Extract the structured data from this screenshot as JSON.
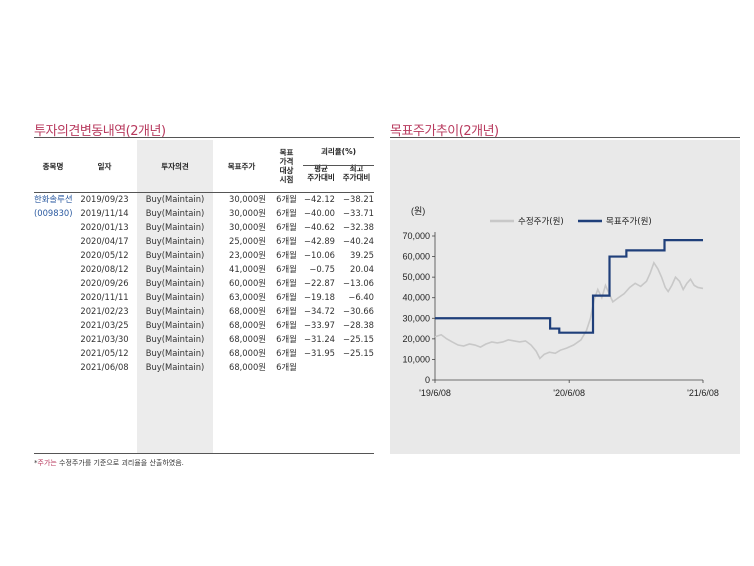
{
  "left_title": "투자의견변동내역(2개년)",
  "right_title": "목표주가추이(2개년)",
  "table": {
    "headers": {
      "name": "종목명",
      "date": "일자",
      "opinion": "투자의견",
      "target": "목표주가",
      "period_lines": [
        "목표",
        "가격",
        "대상",
        "시점"
      ],
      "gap": "괴리율(%)",
      "avg_lines": [
        "평균",
        "주가대비"
      ],
      "max_lines": [
        "최고",
        "주가대비"
      ]
    },
    "company": {
      "name": "한화솔루션",
      "code": "(009830)"
    },
    "rows": [
      {
        "date": "2019/09/23",
        "opinion": "Buy(Maintain)",
        "target": "30,000원",
        "period": "6개월",
        "avg": "-42.12",
        "max": "-38.21"
      },
      {
        "date": "2019/11/14",
        "opinion": "Buy(Maintain)",
        "target": "30,000원",
        "period": "6개월",
        "avg": "-40.00",
        "max": "-33.71"
      },
      {
        "date": "2020/01/13",
        "opinion": "Buy(Maintain)",
        "target": "30,000원",
        "period": "6개월",
        "avg": "-40.62",
        "max": "-32.38"
      },
      {
        "date": "2020/04/17",
        "opinion": "Buy(Maintain)",
        "target": "25,000원",
        "period": "6개월",
        "avg": "-42.89",
        "max": "-40.24"
      },
      {
        "date": "2020/05/12",
        "opinion": "Buy(Maintain)",
        "target": "23,000원",
        "period": "6개월",
        "avg": "-10.06",
        "max": "39.25"
      },
      {
        "date": "2020/08/12",
        "opinion": "Buy(Maintain)",
        "target": "41,000원",
        "period": "6개월",
        "avg": "-0.75",
        "max": "20.04"
      },
      {
        "date": "2020/09/26",
        "opinion": "Buy(Maintain)",
        "target": "60,000원",
        "period": "6개월",
        "avg": "-22.87",
        "max": "-13.06"
      },
      {
        "date": "2020/11/11",
        "opinion": "Buy(Maintain)",
        "target": "63,000원",
        "period": "6개월",
        "avg": "-19.18",
        "max": "-6.40"
      },
      {
        "date": "2021/02/23",
        "opinion": "Buy(Maintain)",
        "target": "68,000원",
        "period": "6개월",
        "avg": "-34.72",
        "max": "-30.66"
      },
      {
        "date": "2021/03/25",
        "opinion": "Buy(Maintain)",
        "target": "68,000원",
        "period": "6개월",
        "avg": "-33.97",
        "max": "-28.38"
      },
      {
        "date": "2021/03/30",
        "opinion": "Buy(Maintain)",
        "target": "68,000원",
        "period": "6개월",
        "avg": "-31.24",
        "max": "-25.15"
      },
      {
        "date": "2021/05/12",
        "opinion": "Buy(Maintain)",
        "target": "68,000원",
        "period": "6개월",
        "avg": "-31.95",
        "max": "-25.15"
      },
      {
        "date": "2021/06/08",
        "opinion": "Buy(Maintain)",
        "target": "68,000원",
        "period": "6개월",
        "avg": "",
        "max": ""
      }
    ]
  },
  "footnote": {
    "highlight": "주가는",
    "rest": " 수정주가를 기준으로 괴리율을 산출하였음.",
    "marker": "*"
  },
  "chart_data": {
    "type": "line",
    "ylabel": "(원)",
    "ylim": [
      0,
      70000
    ],
    "yticks": [
      "0",
      "10,000",
      "20,000",
      "30,000",
      "40,000",
      "50,000",
      "60,000",
      "70,000"
    ],
    "xlim": [
      "2019-06-08",
      "2021-06-08"
    ],
    "xticks": [
      {
        "label": "'19/6/08",
        "x": "2019-06-08"
      },
      {
        "label": "'20/6/08",
        "x": "2020-06-08"
      },
      {
        "label": "'21/6/08",
        "x": "2021-06-08"
      }
    ],
    "legend": "top",
    "colors": {
      "price": "#c8c8c8",
      "target": "#1f3f7a"
    },
    "series": [
      {
        "name": "수정주가(원)",
        "style": "line",
        "points": [
          [
            "2019-06-08",
            21000
          ],
          [
            "2019-06-25",
            22000
          ],
          [
            "2019-07-10",
            20000
          ],
          [
            "2019-07-25",
            18500
          ],
          [
            "2019-08-10",
            17000
          ],
          [
            "2019-08-25",
            16500
          ],
          [
            "2019-09-10",
            17500
          ],
          [
            "2019-09-25",
            17000
          ],
          [
            "2019-10-10",
            16000
          ],
          [
            "2019-10-25",
            17500
          ],
          [
            "2019-11-10",
            18500
          ],
          [
            "2019-11-25",
            18000
          ],
          [
            "2019-12-10",
            18500
          ],
          [
            "2019-12-25",
            19500
          ],
          [
            "2020-01-10",
            19000
          ],
          [
            "2020-01-25",
            18500
          ],
          [
            "2020-02-10",
            19000
          ],
          [
            "2020-02-25",
            17000
          ],
          [
            "2020-03-10",
            14000
          ],
          [
            "2020-03-20",
            10500
          ],
          [
            "2020-04-01",
            12500
          ],
          [
            "2020-04-15",
            13500
          ],
          [
            "2020-05-01",
            13000
          ],
          [
            "2020-05-15",
            14500
          ],
          [
            "2020-06-01",
            15500
          ],
          [
            "2020-06-20",
            17000
          ],
          [
            "2020-07-10",
            19500
          ],
          [
            "2020-07-25",
            24000
          ],
          [
            "2020-08-05",
            30000
          ],
          [
            "2020-08-15",
            39000
          ],
          [
            "2020-08-25",
            44000
          ],
          [
            "2020-09-05",
            40000
          ],
          [
            "2020-09-15",
            46000
          ],
          [
            "2020-09-25",
            42000
          ],
          [
            "2020-10-05",
            38000
          ],
          [
            "2020-10-20",
            40000
          ],
          [
            "2020-11-05",
            42000
          ],
          [
            "2020-11-20",
            45000
          ],
          [
            "2020-12-05",
            47000
          ],
          [
            "2020-12-20",
            45500
          ],
          [
            "2021-01-05",
            48000
          ],
          [
            "2021-01-15",
            52000
          ],
          [
            "2021-01-25",
            57000
          ],
          [
            "2021-02-05",
            54000
          ],
          [
            "2021-02-15",
            50000
          ],
          [
            "2021-02-25",
            45000
          ],
          [
            "2021-03-05",
            43000
          ],
          [
            "2021-03-15",
            46000
          ],
          [
            "2021-03-25",
            50000
          ],
          [
            "2021-04-05",
            48000
          ],
          [
            "2021-04-15",
            44000
          ],
          [
            "2021-04-25",
            47000
          ],
          [
            "2021-05-05",
            49000
          ],
          [
            "2021-05-15",
            46000
          ],
          [
            "2021-05-25",
            45000
          ],
          [
            "2021-06-08",
            44500
          ]
        ]
      },
      {
        "name": "목표주가(원)",
        "style": "step",
        "points": [
          [
            "2019-06-08",
            30000
          ],
          [
            "2020-04-17",
            25000
          ],
          [
            "2020-05-12",
            23000
          ],
          [
            "2020-08-12",
            41000
          ],
          [
            "2020-09-26",
            60000
          ],
          [
            "2020-11-11",
            63000
          ],
          [
            "2021-02-23",
            68000
          ],
          [
            "2021-06-08",
            68000
          ]
        ]
      }
    ]
  }
}
